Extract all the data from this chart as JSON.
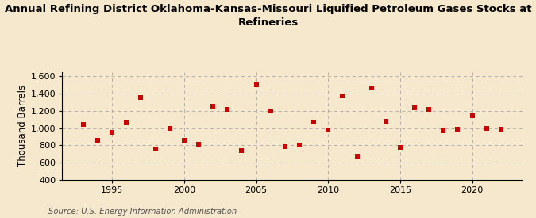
{
  "title": "Annual Refining District Oklahoma-Kansas-Missouri Liquified Petroleum Gases Stocks at\nRefineries",
  "ylabel": "Thousand Barrels",
  "source": "Source: U.S. Energy Information Administration",
  "background_color": "#f5e8cc",
  "plot_bg_color": "#f5e8cc",
  "marker_color": "#cc0000",
  "marker_size": 5,
  "years": [
    1993,
    1994,
    1995,
    1996,
    1997,
    1998,
    1999,
    2000,
    2001,
    2002,
    2003,
    2004,
    2005,
    2006,
    2007,
    2008,
    2009,
    2010,
    2011,
    2012,
    2013,
    2014,
    2015,
    2016,
    2017,
    2018,
    2019,
    2020,
    2021,
    2022
  ],
  "values": [
    1040,
    860,
    950,
    1060,
    1350,
    760,
    1000,
    860,
    810,
    1250,
    1220,
    740,
    1500,
    1200,
    780,
    800,
    1070,
    980,
    1370,
    670,
    1460,
    1080,
    775,
    1230,
    1220,
    970,
    990,
    1145,
    1000,
    990
  ],
  "ylim": [
    400,
    1650
  ],
  "xlim": [
    1991.5,
    2023.5
  ],
  "yticks": [
    400,
    600,
    800,
    1000,
    1200,
    1400,
    1600
  ],
  "xticks": [
    1995,
    2000,
    2005,
    2010,
    2015,
    2020
  ],
  "grid_color": "#b0b0b0",
  "title_fontsize": 9.5,
  "axis_fontsize": 8.5,
  "tick_fontsize": 8
}
